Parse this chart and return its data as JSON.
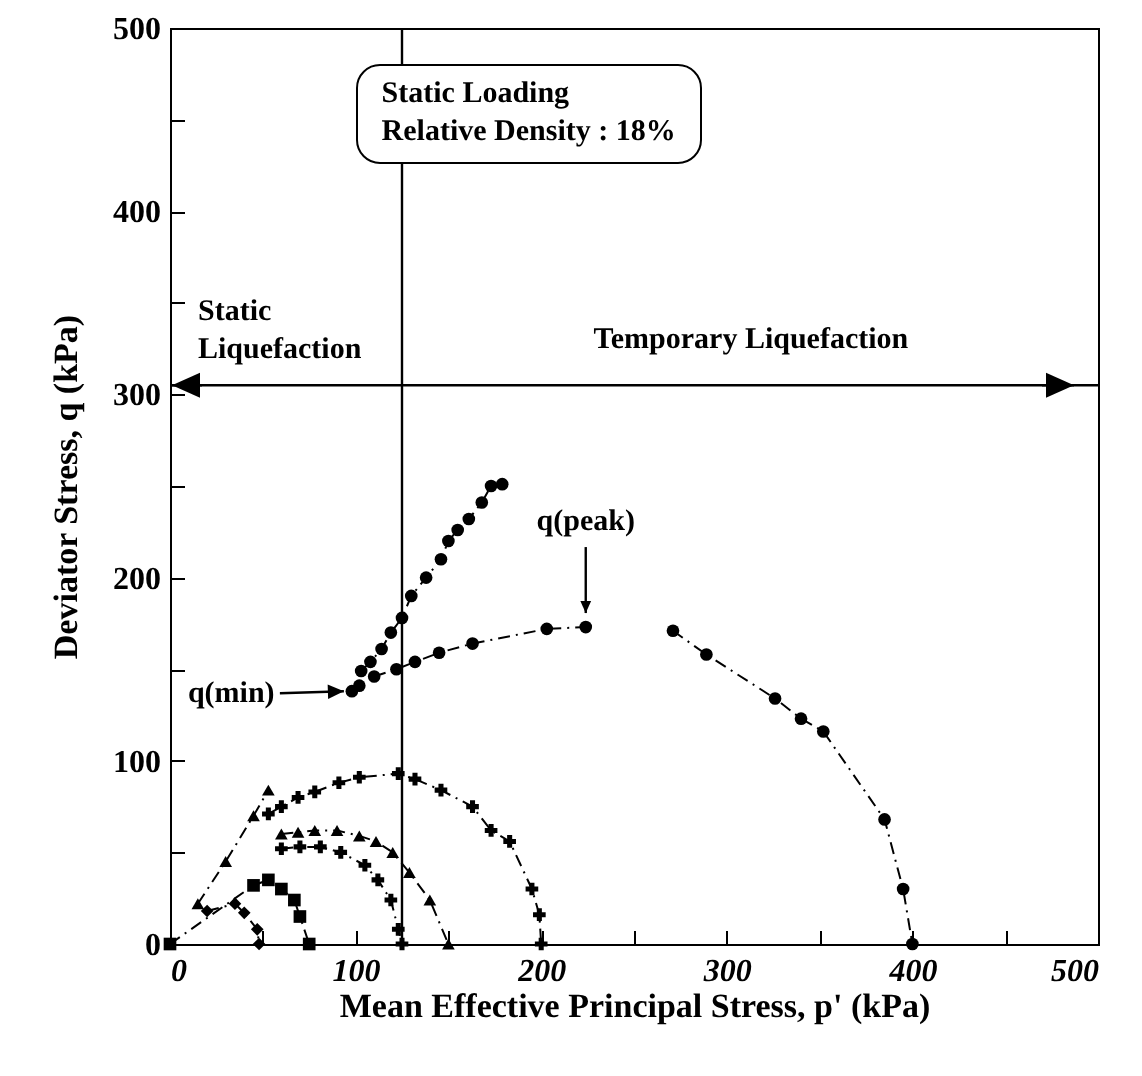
{
  "chart_data": {
    "type": "line",
    "xlabel": "Mean Effective Principal Stress, p' (kPa)",
    "ylabel": "Deviator Stress, q (kPa)",
    "xlim": [
      0,
      500
    ],
    "ylim": [
      0,
      500
    ],
    "xticks": [
      0,
      {
        "value": 50,
        "label": null
      },
      100,
      {
        "value": 150,
        "label": null
      },
      200,
      {
        "value": 250,
        "label": null
      },
      300,
      {
        "value": 350,
        "label": null
      },
      400,
      {
        "value": 450,
        "label": null
      },
      500
    ],
    "yticks": [
      0,
      {
        "value": 50,
        "label": null
      },
      100,
      {
        "value": 150,
        "label": null
      },
      200,
      {
        "value": 250,
        "label": null
      },
      300,
      {
        "value": 350,
        "label": null
      },
      400,
      {
        "value": 450,
        "label": null
      },
      500
    ],
    "grid": false,
    "line_style": "dashed",
    "ref_lines": [
      {
        "axis": "x",
        "value": 125,
        "line_style": "solid"
      },
      {
        "axis": "y",
        "value": 305,
        "line_style": "solid"
      }
    ],
    "annotations": [
      "Static Loading",
      "Relative Density : 18%",
      "Static Liquefaction",
      "Temporary Liquefaction",
      {
        "text": "q(min)",
        "x": 98,
        "y": 138
      },
      {
        "text": "q(peak)",
        "x": 224,
        "y": 173
      }
    ],
    "series": [
      {
        "color": "#000000",
        "marker": "circle",
        "x": [
          98,
          102,
          103,
          108,
          114,
          119,
          125,
          130,
          138,
          146,
          150,
          155,
          161,
          168,
          173,
          179
        ],
        "values": [
          138,
          141,
          149,
          154,
          161,
          170,
          178,
          190,
          200,
          210,
          220,
          226,
          232,
          241,
          250,
          251
        ]
      },
      {
        "color": "#000000",
        "marker": "circle",
        "x": [
          110,
          122,
          132,
          145,
          163,
          203,
          224
        ],
        "values": [
          146,
          150,
          154,
          159,
          164,
          172,
          173
        ]
      },
      {
        "color": "#000000",
        "marker": "circle",
        "x": [
          271,
          289,
          326,
          340,
          352,
          385,
          395,
          400
        ],
        "values": [
          171,
          158,
          134,
          123,
          116,
          68,
          30,
          0
        ]
      },
      {
        "color": "#000000",
        "marker": "cross",
        "x": [
          53,
          60,
          69,
          78,
          91,
          102,
          123,
          132,
          146,
          163,
          173,
          183,
          195,
          199,
          200
        ],
        "values": [
          71,
          75,
          80,
          83,
          88,
          91,
          93,
          90,
          84,
          75,
          62,
          56,
          30,
          16,
          0
        ]
      },
      {
        "color": "#000000",
        "marker": "triangle",
        "x": [
          15,
          30,
          45,
          53
        ],
        "values": [
          22,
          45,
          70,
          84
        ]
      },
      {
        "color": "#000000",
        "marker": "triangle",
        "x": [
          60,
          69,
          78,
          90,
          102,
          111,
          120,
          129,
          140,
          150
        ],
        "values": [
          60,
          61,
          62,
          62,
          59,
          56,
          50,
          39,
          24,
          0
        ]
      },
      {
        "color": "#000000",
        "marker": "cross",
        "x": [
          60,
          70,
          81,
          92,
          105,
          112,
          119,
          123,
          125
        ],
        "values": [
          52,
          53,
          53,
          50,
          43,
          35,
          24,
          8,
          0
        ]
      },
      {
        "color": "#000000",
        "marker": "square",
        "x": [
          0,
          45,
          53,
          60,
          67,
          70,
          75
        ],
        "values": [
          0,
          32,
          35,
          30,
          24,
          15,
          0
        ]
      },
      {
        "color": "#000000",
        "marker": "diamond",
        "x": [
          20,
          35,
          40,
          47,
          48
        ],
        "values": [
          18,
          22,
          17,
          8,
          0
        ]
      }
    ]
  }
}
